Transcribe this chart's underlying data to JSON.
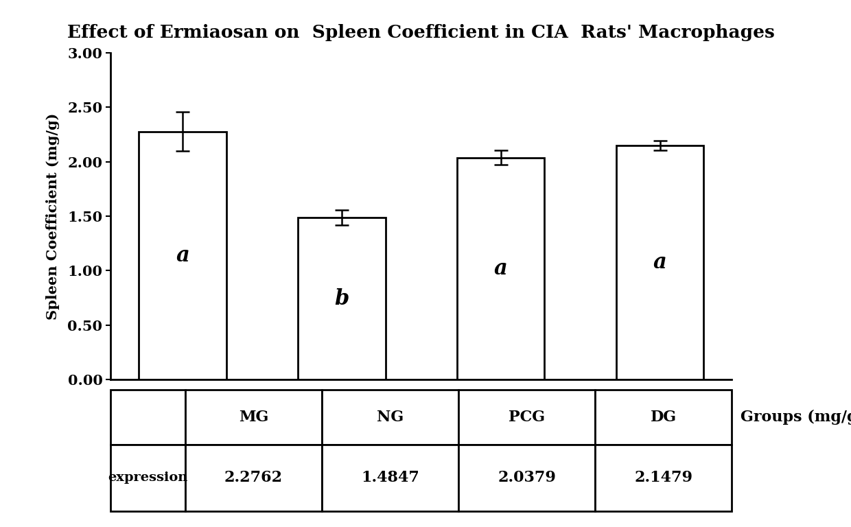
{
  "title": "Effect of Ermiaosan on  Spleen Coefficient in CIA  Rats' Macrophages",
  "groups": [
    "MG",
    "NG",
    "PCG",
    "DG"
  ],
  "values": [
    2.2762,
    1.4847,
    2.0379,
    2.1479
  ],
  "errors": [
    0.18,
    0.07,
    0.065,
    0.045
  ],
  "letters": [
    "a",
    "b",
    "a",
    "a"
  ],
  "expression_label": "expression",
  "expression_values": [
    "2.2762",
    "1.4847",
    "2.0379",
    "2.1479"
  ],
  "ylabel": "Spleen Coefficient (mg/g)",
  "xlabel": "Groups (mg/g)",
  "ylim": [
    0,
    3.0
  ],
  "yticks": [
    0.0,
    0.5,
    1.0,
    1.5,
    2.0,
    2.5,
    3.0
  ],
  "bar_color": "#ffffff",
  "bar_edgecolor": "#000000",
  "background_color": "#ffffff",
  "title_fontsize": 19,
  "axis_fontsize": 15,
  "tick_fontsize": 15,
  "letter_fontsize": 22,
  "table_fontsize": 15,
  "groups_label_fontsize": 16
}
